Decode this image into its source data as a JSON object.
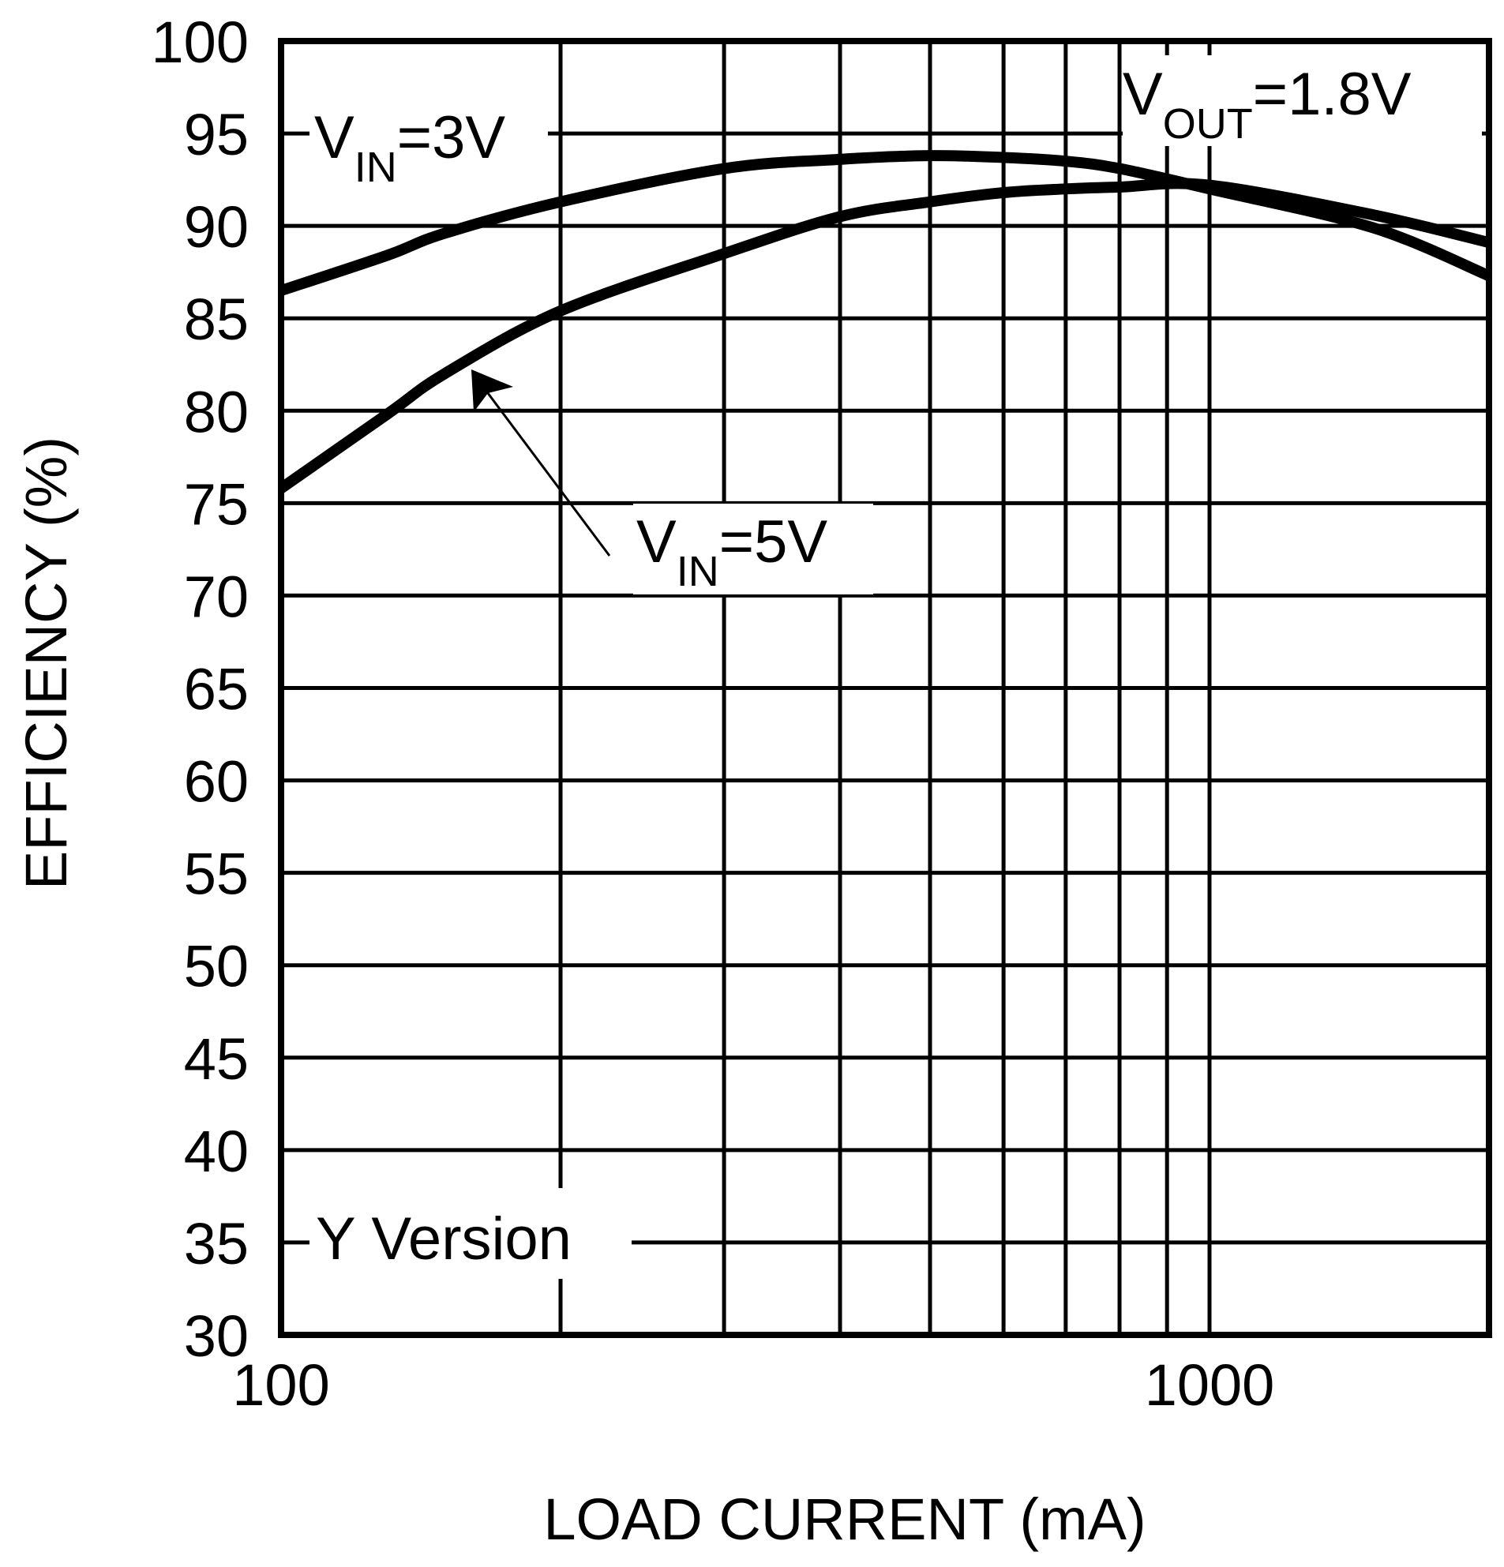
{
  "chart_data": {
    "type": "line",
    "title": "",
    "xlabel": "LOAD CURRENT (mA)",
    "ylabel": "EFFICIENCY (%)",
    "xscale": "log",
    "xlim": [
      100,
      2000
    ],
    "ylim": [
      30,
      100
    ],
    "grid": true,
    "x_tick_labels": [
      "100",
      "1000"
    ],
    "y_tick_labels": [
      "100",
      "95",
      "90",
      "85",
      "80",
      "75",
      "70",
      "65",
      "60",
      "55",
      "50",
      "45",
      "40",
      "35",
      "30"
    ],
    "annotations": {
      "vout": {
        "main": "V",
        "sub": "OUT",
        "rest": "=1.8V"
      },
      "vin3": {
        "main": "V",
        "sub": "IN",
        "rest": "=3V"
      },
      "vin5": {
        "main": "V",
        "sub": "IN",
        "rest": "=5V"
      },
      "version": "Y Version"
    },
    "x": [
      100,
      130,
      150,
      200,
      300,
      400,
      500,
      600,
      700,
      800,
      1000,
      1500,
      2000
    ],
    "series": [
      {
        "name": "VIN=3V",
        "values": [
          86.5,
          88.4,
          89.6,
          91.3,
          93.1,
          93.6,
          93.8,
          93.7,
          93.5,
          93.1,
          92.0,
          89.9,
          87.3
        ]
      },
      {
        "name": "VIN=5V",
        "values": [
          75.8,
          79.8,
          82.0,
          85.4,
          88.5,
          90.5,
          91.3,
          91.8,
          92.0,
          92.1,
          92.2,
          90.6,
          89.1
        ]
      }
    ],
    "colors": {
      "line": "#000000",
      "grid": "#000000",
      "background": "#ffffff"
    }
  }
}
